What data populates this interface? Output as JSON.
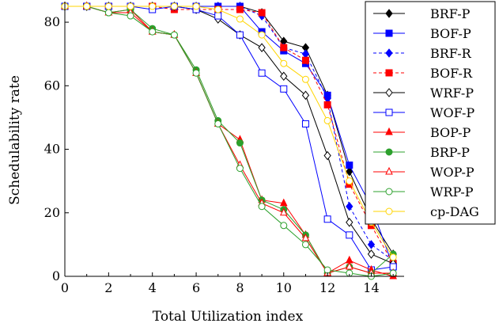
{
  "chart_data": {
    "type": "line",
    "xlabel": "Total Utilization index",
    "ylabel": "Schedulability rate",
    "xlim": [
      0,
      15.5
    ],
    "ylim": [
      0,
      85
    ],
    "xticks": [
      "0",
      "2",
      "4",
      "6",
      "8",
      "10",
      "12",
      "14"
    ],
    "yticks": [
      "0",
      "20",
      "40",
      "60",
      "80"
    ],
    "x": [
      0,
      1,
      2,
      3,
      4,
      5,
      6,
      7,
      8,
      9,
      10,
      11,
      12,
      13,
      14,
      15
    ],
    "legend_position": "right",
    "series": [
      {
        "name": "BRF-P",
        "color": "#000000",
        "dash": "solid",
        "marker": "diamond",
        "fill": true,
        "values": [
          85,
          85,
          85,
          85,
          85,
          85,
          85,
          85,
          85,
          83,
          74,
          72,
          57,
          33,
          18,
          7
        ]
      },
      {
        "name": "BOF-P",
        "color": "#0000ff",
        "dash": "solid",
        "marker": "square",
        "fill": true,
        "values": [
          85,
          85,
          85,
          85,
          85,
          85,
          85,
          85,
          85,
          77,
          71,
          67,
          57,
          35,
          22,
          3
        ]
      },
      {
        "name": "BRF-R",
        "color": "#0000ff",
        "dash": "dashed",
        "marker": "diamond",
        "fill": true,
        "values": [
          85,
          85,
          85,
          85,
          85,
          85,
          85,
          85,
          85,
          82,
          72,
          70,
          56,
          22,
          10,
          5
        ]
      },
      {
        "name": "BOF-R",
        "color": "#ff0000",
        "dash": "dashed",
        "marker": "square",
        "fill": true,
        "values": [
          85,
          85,
          85,
          85,
          85,
          84,
          84,
          84,
          84,
          83,
          72,
          68,
          54,
          29,
          16,
          4
        ]
      },
      {
        "name": "WRF-P",
        "color": "#000000",
        "dash": "solid",
        "marker": "diamond",
        "fill": false,
        "values": [
          85,
          85,
          85,
          85,
          85,
          85,
          84,
          81,
          76,
          72,
          63,
          57,
          38,
          17,
          7,
          4
        ]
      },
      {
        "name": "WOF-P",
        "color": "#0000ff",
        "dash": "solid",
        "marker": "square",
        "fill": false,
        "values": [
          85,
          85,
          85,
          85,
          84,
          85,
          84,
          82,
          76,
          64,
          59,
          48,
          18,
          13,
          2,
          3
        ]
      },
      {
        "name": "BOP-P",
        "color": "#ff0000",
        "dash": "solid",
        "marker": "triangle",
        "fill": true,
        "values": [
          85,
          85,
          83,
          84,
          77,
          76,
          64,
          48,
          43,
          24,
          23,
          13,
          1,
          5,
          2,
          0
        ]
      },
      {
        "name": "BRP-P",
        "color": "#2ca02c",
        "dash": "solid",
        "marker": "circle",
        "fill": true,
        "values": [
          85,
          85,
          83,
          84,
          78,
          76,
          65,
          49,
          42,
          24,
          21,
          13,
          1,
          3,
          1,
          7
        ]
      },
      {
        "name": "WOP-P",
        "color": "#ff0000",
        "dash": "solid",
        "marker": "triangle",
        "fill": false,
        "values": [
          85,
          85,
          83,
          83,
          77,
          76,
          64,
          48,
          35,
          23,
          20,
          12,
          1,
          3,
          1,
          1
        ]
      },
      {
        "name": "WRP-P",
        "color": "#2ca02c",
        "dash": "solid",
        "marker": "circle",
        "fill": false,
        "values": [
          85,
          85,
          83,
          82,
          77,
          76,
          64,
          48,
          34,
          22,
          16,
          10,
          2,
          1,
          0,
          1
        ]
      },
      {
        "name": "cp-DAG",
        "color": "#ffd500",
        "dash": "solid",
        "marker": "circle",
        "fill": false,
        "values": [
          85,
          85,
          85,
          85,
          85,
          85,
          85,
          84,
          81,
          76,
          67,
          62,
          49,
          30,
          17,
          6
        ]
      }
    ]
  }
}
